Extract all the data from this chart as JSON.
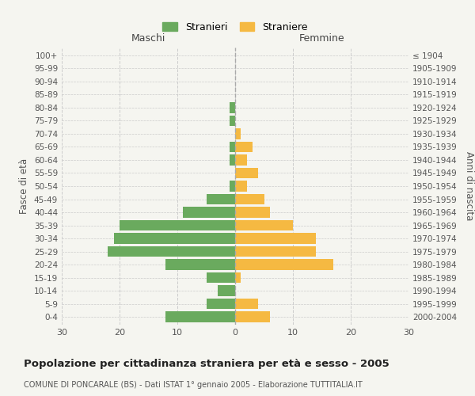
{
  "age_groups": [
    "0-4",
    "5-9",
    "10-14",
    "15-19",
    "20-24",
    "25-29",
    "30-34",
    "35-39",
    "40-44",
    "45-49",
    "50-54",
    "55-59",
    "60-64",
    "65-69",
    "70-74",
    "75-79",
    "80-84",
    "85-89",
    "90-94",
    "95-99",
    "100+"
  ],
  "birth_years": [
    "2000-2004",
    "1995-1999",
    "1990-1994",
    "1985-1989",
    "1980-1984",
    "1975-1979",
    "1970-1974",
    "1965-1969",
    "1960-1964",
    "1955-1959",
    "1950-1954",
    "1945-1949",
    "1940-1944",
    "1935-1939",
    "1930-1934",
    "1925-1929",
    "1920-1924",
    "1915-1919",
    "1910-1914",
    "1905-1909",
    "≤ 1904"
  ],
  "males": [
    12,
    5,
    3,
    5,
    12,
    22,
    21,
    20,
    9,
    5,
    1,
    0,
    1,
    1,
    0,
    1,
    1,
    0,
    0,
    0,
    0
  ],
  "females": [
    6,
    4,
    0,
    1,
    17,
    14,
    14,
    10,
    6,
    5,
    2,
    4,
    2,
    3,
    1,
    0,
    0,
    0,
    0,
    0,
    0
  ],
  "male_color": "#6aaa5e",
  "female_color": "#f5b942",
  "background_color": "#f5f5f0",
  "grid_color": "#cccccc",
  "title": "Popolazione per cittadinanza straniera per età e sesso - 2005",
  "subtitle": "COMUNE DI PONCARALE (BS) - Dati ISTAT 1° gennaio 2005 - Elaborazione TUTTITALIA.IT",
  "xlabel_left": "Maschi",
  "xlabel_right": "Femmine",
  "ylabel_left": "Fasce di età",
  "ylabel_right": "Anni di nascita",
  "legend_stranieri": "Stranieri",
  "legend_straniere": "Straniere",
  "xlim": 30,
  "bar_height": 0.8
}
